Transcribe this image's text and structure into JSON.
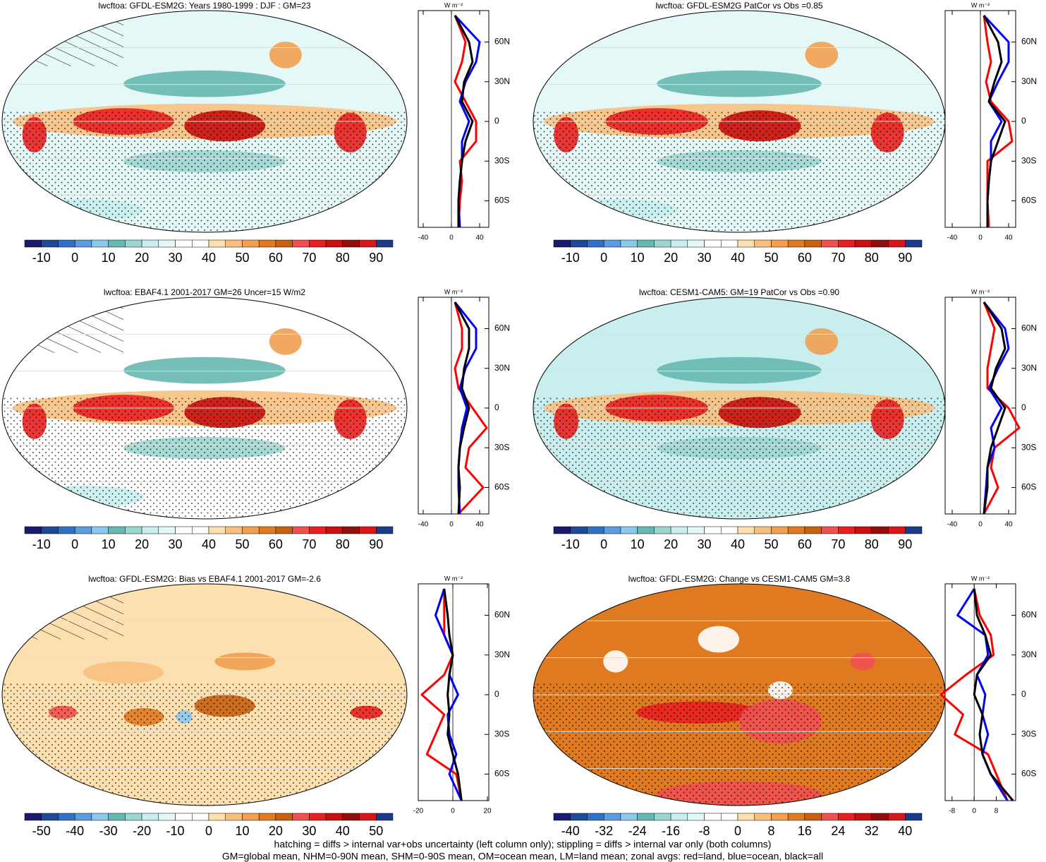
{
  "panels": [
    {
      "title": "lwcftoa: GFDL-ESM2G: Years 1980-1999 : DJF : GM=23",
      "background": "#e4f8f8",
      "scheme": "top",
      "colorbar": {
        "colors": [
          "#1a1a6e",
          "#1e4a9a",
          "#2f72c4",
          "#5a9ee0",
          "#8cc8ec",
          "#66b8b0",
          "#9cd6d0",
          "#c8eeee",
          "#e4f8f8",
          "#ffffff",
          "#ffffff",
          "#fde0b0",
          "#f8c080",
          "#f0a050",
          "#e07a20",
          "#c86010",
          "#f05050",
          "#e82020",
          "#c81010",
          "#901010",
          "#d81818",
          "#1a3a8a"
        ],
        "labels": [
          -10,
          0,
          10,
          20,
          30,
          40,
          50,
          60,
          70,
          80,
          90
        ]
      },
      "zonal": {
        "units": "W m⁻²",
        "xlim": [
          -47,
          53
        ],
        "xticks": [
          -40,
          0,
          40
        ],
        "ylim": [
          -80,
          80
        ],
        "yticks": [
          {
            "value": 60,
            "label": "60N"
          },
          {
            "value": 30,
            "label": "30N"
          },
          0,
          {
            "value": -30,
            "label": "30S"
          },
          {
            "value": -60,
            "label": "60S"
          }
        ],
        "lat": [
          -80,
          -60,
          -45,
          -30,
          -15,
          0,
          15,
          30,
          45,
          60,
          80
        ],
        "series": [
          {
            "color": "#ff0000",
            "values": [
              10,
              12,
              15,
              12,
              35,
              35,
              20,
              5,
              15,
              20,
              5
            ]
          },
          {
            "color": "#0000ff",
            "values": [
              12,
              10,
              12,
              15,
              15,
              25,
              12,
              20,
              35,
              40,
              5
            ]
          },
          {
            "color": "#000000",
            "values": [
              10,
              10,
              12,
              15,
              20,
              30,
              15,
              18,
              30,
              25,
              5
            ]
          }
        ]
      }
    },
    {
      "title": "lwcftoa: GFDL-ESM2G PatCor vs Obs =0.85",
      "background": "#e4f8f8",
      "scheme": "top",
      "colorbar": {
        "colors": [
          "#1a1a6e",
          "#1e4a9a",
          "#2f72c4",
          "#5a9ee0",
          "#8cc8ec",
          "#66b8b0",
          "#9cd6d0",
          "#c8eeee",
          "#e4f8f8",
          "#ffffff",
          "#ffffff",
          "#fde0b0",
          "#f8c080",
          "#f0a050",
          "#e07a20",
          "#c86010",
          "#f05050",
          "#e82020",
          "#c81010",
          "#901010",
          "#d81818",
          "#1a3a8a"
        ],
        "labels": [
          -10,
          0,
          10,
          20,
          30,
          40,
          50,
          60,
          70,
          80,
          90
        ]
      },
      "zonal": {
        "units": "W m⁻²",
        "xlim": [
          -50,
          50
        ],
        "xticks": [
          -40,
          0,
          40
        ],
        "ylim": [
          -80,
          80
        ],
        "yticks": [
          {
            "value": 60,
            "label": "60N"
          },
          {
            "value": 30,
            "label": "30N"
          },
          0,
          {
            "value": -30,
            "label": "30S"
          },
          {
            "value": -60,
            "label": "60S"
          }
        ],
        "lat": [
          -80,
          -60,
          -45,
          -30,
          -15,
          0,
          15,
          30,
          45,
          60,
          80
        ],
        "series": [
          {
            "color": "#ff0000",
            "values": [
              12,
              10,
              10,
              10,
              45,
              40,
              15,
              8,
              15,
              10,
              5
            ]
          },
          {
            "color": "#0000ff",
            "values": [
              10,
              10,
              12,
              15,
              15,
              30,
              12,
              25,
              40,
              40,
              5
            ]
          },
          {
            "color": "#000000",
            "values": [
              10,
              10,
              12,
              15,
              25,
              35,
              12,
              20,
              30,
              25,
              5
            ]
          }
        ]
      }
    },
    {
      "title": "lwcftoa: EBAF4.1 2001-2017 GM=26 Uncer=15 W/m2",
      "background": "#ffffff",
      "scheme": "top",
      "colorbar": {
        "colors": [
          "#1a1a6e",
          "#1e4a9a",
          "#2f72c4",
          "#5a9ee0",
          "#8cc8ec",
          "#66b8b0",
          "#9cd6d0",
          "#c8eeee",
          "#e4f8f8",
          "#ffffff",
          "#ffffff",
          "#fde0b0",
          "#f8c080",
          "#f0a050",
          "#e07a20",
          "#c86010",
          "#f05050",
          "#e82020",
          "#c81010",
          "#901010",
          "#d81818",
          "#1a3a8a"
        ],
        "labels": [
          -10,
          0,
          10,
          20,
          30,
          40,
          50,
          60,
          70,
          80,
          90
        ]
      },
      "zonal": {
        "units": "W m⁻²",
        "xlim": [
          -47,
          53
        ],
        "xticks": [
          -40,
          0,
          40
        ],
        "ylim": [
          -80,
          80
        ],
        "yticks": [
          {
            "value": 60,
            "label": "60N"
          },
          {
            "value": 30,
            "label": "30N"
          },
          0,
          {
            "value": -30,
            "label": "30S"
          },
          {
            "value": -60,
            "label": "60S"
          }
        ],
        "lat": [
          -80,
          -60,
          -45,
          -30,
          -15,
          0,
          15,
          30,
          45,
          60,
          80
        ],
        "series": [
          {
            "color": "#ff0000",
            "values": [
              10,
              45,
              20,
              25,
              50,
              30,
              10,
              5,
              15,
              15,
              5
            ]
          },
          {
            "color": "#0000ff",
            "values": [
              12,
              10,
              10,
              12,
              15,
              22,
              12,
              20,
              35,
              35,
              5
            ]
          },
          {
            "color": "#000000",
            "values": [
              10,
              12,
              10,
              12,
              18,
              25,
              15,
              18,
              25,
              25,
              5
            ]
          }
        ]
      }
    },
    {
      "title": "lwcftoa: CESM1-CAM5: GM=19 PatCor vs Obs =0.90",
      "background": "#c8eeee",
      "scheme": "top",
      "colorbar": {
        "colors": [
          "#1a1a6e",
          "#1e4a9a",
          "#2f72c4",
          "#5a9ee0",
          "#8cc8ec",
          "#66b8b0",
          "#9cd6d0",
          "#c8eeee",
          "#e4f8f8",
          "#ffffff",
          "#ffffff",
          "#fde0b0",
          "#f8c080",
          "#f0a050",
          "#e07a20",
          "#c86010",
          "#f05050",
          "#e82020",
          "#c81010",
          "#901010",
          "#d81818",
          "#1a3a8a"
        ],
        "labels": [
          -10,
          0,
          10,
          20,
          30,
          40,
          50,
          60,
          70,
          80,
          90
        ]
      },
      "zonal": {
        "units": "W m⁻²",
        "xlim": [
          -50,
          50
        ],
        "xticks": [
          -40,
          0,
          40
        ],
        "ylim": [
          -80,
          80
        ],
        "yticks": [
          {
            "value": 60,
            "label": "60N"
          },
          {
            "value": 30,
            "label": "30N"
          },
          0,
          {
            "value": -30,
            "label": "30S"
          },
          {
            "value": -60,
            "label": "60S"
          }
        ],
        "lat": [
          -80,
          -60,
          -45,
          -30,
          -15,
          0,
          15,
          30,
          45,
          60,
          80
        ],
        "series": [
          {
            "color": "#ff0000",
            "values": [
              5,
              25,
              15,
              20,
              55,
              40,
              10,
              10,
              15,
              20,
              5
            ]
          },
          {
            "color": "#0000ff",
            "values": [
              5,
              8,
              10,
              20,
              15,
              30,
              12,
              25,
              40,
              35,
              5
            ]
          },
          {
            "color": "#000000",
            "values": [
              5,
              10,
              10,
              15,
              25,
              35,
              15,
              22,
              35,
              30,
              5
            ]
          }
        ]
      }
    },
    {
      "title": "lwcftoa: GFDL-ESM2G: Bias vs EBAF4.1 2001-2017 GM=-2.6",
      "background": "#fde0b0",
      "scheme": "bias",
      "colorbar": {
        "colors": [
          "#1a1a6e",
          "#1e4a9a",
          "#2f72c4",
          "#5a9ee0",
          "#8cc8ec",
          "#66b8b0",
          "#9cd6d0",
          "#c8eeee",
          "#e4f8f8",
          "#ffffff",
          "#ffffff",
          "#fde0b0",
          "#f8c080",
          "#f0a050",
          "#e07a20",
          "#c86010",
          "#f05050",
          "#e82020",
          "#c81010",
          "#901010",
          "#d81818",
          "#1a3a8a"
        ],
        "labels": [
          -50,
          -40,
          -30,
          -20,
          -10,
          0,
          10,
          20,
          30,
          40,
          50
        ]
      },
      "zonal": {
        "units": "W m⁻²",
        "xlim": [
          -20,
          20.8
        ],
        "xticks": [
          -20,
          0,
          20
        ],
        "ylim": [
          -80,
          80
        ],
        "yticks": [
          {
            "value": 60,
            "label": "60N"
          },
          {
            "value": 30,
            "label": "30N"
          },
          0,
          {
            "value": -30,
            "label": "30S"
          },
          {
            "value": -60,
            "label": "60S"
          }
        ],
        "lat": [
          -80,
          -60,
          -45,
          -30,
          -15,
          0,
          15,
          30,
          45,
          60,
          80
        ],
        "series": [
          {
            "color": "#ff0000",
            "values": [
              5,
              2,
              -15,
              -10,
              -5,
              -18,
              -5,
              0,
              -5,
              -5,
              -5
            ]
          },
          {
            "color": "#0000ff",
            "values": [
              5,
              -2,
              2,
              -2,
              -3,
              3,
              -2,
              0,
              -5,
              -10,
              -5
            ]
          },
          {
            "color": "#000000",
            "values": [
              5,
              3,
              0,
              -3,
              -2,
              -3,
              -2,
              0,
              -2,
              -3,
              -5
            ]
          }
        ]
      }
    },
    {
      "title": "lwcftoa: GFDL-ESM2G: Change vs CESM1-CAM5 GM=3.8",
      "background": "#e07a20",
      "scheme": "change",
      "colorbar": {
        "colors": [
          "#1a1a6e",
          "#1e4a9a",
          "#2f72c4",
          "#5a9ee0",
          "#8cc8ec",
          "#66b8b0",
          "#9cd6d0",
          "#c8eeee",
          "#e4f8f8",
          "#ffffff",
          "#ffffff",
          "#fde0b0",
          "#f8c080",
          "#f0a050",
          "#e07a20",
          "#c86010",
          "#f05050",
          "#e82020",
          "#c81010",
          "#901010",
          "#d81818",
          "#1a3a8a"
        ],
        "labels": [
          -40,
          -32,
          -24,
          -16,
          -8,
          0,
          8,
          16,
          24,
          32,
          40
        ]
      },
      "zonal": {
        "units": "W m⁻²",
        "xlim": [
          -10.5,
          15
        ],
        "xticks": [
          -8,
          0,
          8
        ],
        "ylim": [
          -80,
          80
        ],
        "yticks": [
          {
            "value": 60,
            "label": "60N"
          },
          {
            "value": 30,
            "label": "30N"
          },
          0,
          {
            "value": -30,
            "label": "30S"
          },
          {
            "value": -60,
            "label": "60S"
          }
        ],
        "lat": [
          -80,
          -60,
          -45,
          -30,
          -15,
          0,
          15,
          30,
          45,
          60,
          80
        ],
        "series": [
          {
            "color": "#ff0000",
            "values": [
              12,
              8,
              5,
              -7,
              -4,
              -12,
              -3,
              7,
              6,
              2,
              0
            ]
          },
          {
            "color": "#0000ff",
            "values": [
              12,
              6,
              3,
              5,
              3,
              4,
              1,
              5,
              4,
              -6,
              0
            ]
          },
          {
            "color": "#000000",
            "values": [
              14,
              6,
              3,
              2,
              3,
              0,
              1,
              6,
              4,
              1,
              0
            ]
          }
        ]
      }
    }
  ],
  "footer": [
    "hatching = diffs > internal var+obs uncertainty (left column only); stippling = diffs > internal var only (both columns)",
    "GM=global mean, NHM=0-90N mean, SHM=0-90S mean, OM=ocean mean, LM=land mean; zonal avgs: red=land, blue=ocean, black=all"
  ]
}
